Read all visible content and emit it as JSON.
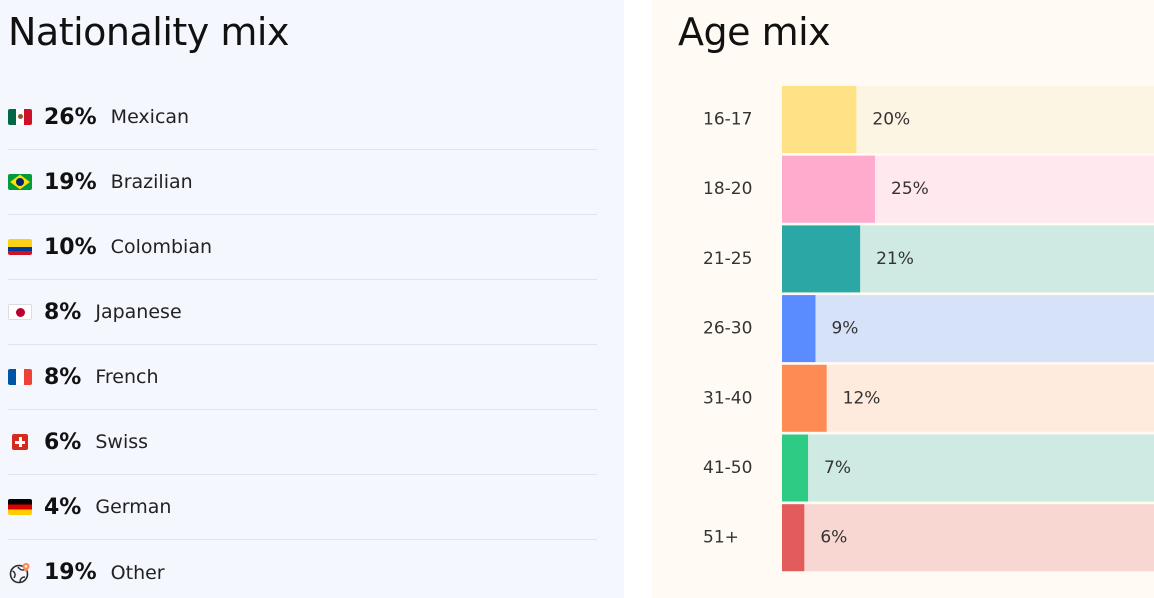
{
  "nationality": {
    "title": "Nationality mix",
    "items": [
      {
        "flag": "mexico-flag-icon",
        "percent": "26%",
        "name": "Mexican"
      },
      {
        "flag": "brazil-flag-icon",
        "percent": "19%",
        "name": "Brazilian"
      },
      {
        "flag": "colombia-flag-icon",
        "percent": "10%",
        "name": "Colombian"
      },
      {
        "flag": "japan-flag-icon",
        "percent": "8%",
        "name": "Japanese"
      },
      {
        "flag": "france-flag-icon",
        "percent": "8%",
        "name": "French"
      },
      {
        "flag": "switzerland-flag-icon",
        "percent": "6%",
        "name": "Swiss"
      },
      {
        "flag": "germany-flag-icon",
        "percent": "4%",
        "name": "German"
      },
      {
        "flag": "globe-icon",
        "percent": "19%",
        "name": "Other"
      }
    ]
  },
  "age": {
    "title": "Age mix"
  },
  "chart_data": {
    "type": "bar",
    "orientation": "horizontal",
    "title": "Age mix",
    "categories": [
      "16-17",
      "18-20",
      "21-25",
      "26-30",
      "31-40",
      "41-50",
      "51+"
    ],
    "values": [
      20,
      25,
      21,
      9,
      12,
      7,
      6
    ],
    "value_labels": [
      "20%",
      "25%",
      "21%",
      "9%",
      "12%",
      "7%",
      "6%"
    ],
    "unit": "%",
    "xlim": [
      0,
      100
    ],
    "bar_colors": [
      "#ffe285",
      "#ffabcd",
      "#2ba8a5",
      "#5a8bff",
      "#ff8b54",
      "#2ecb85",
      "#e35c5c"
    ],
    "track_colors": [
      "#fdf5e3",
      "#ffe9ee",
      "#cfe9e3",
      "#d6e2f8",
      "#ffebde",
      "#cfe9e3",
      "#f8d7d2"
    ],
    "grid": false
  }
}
